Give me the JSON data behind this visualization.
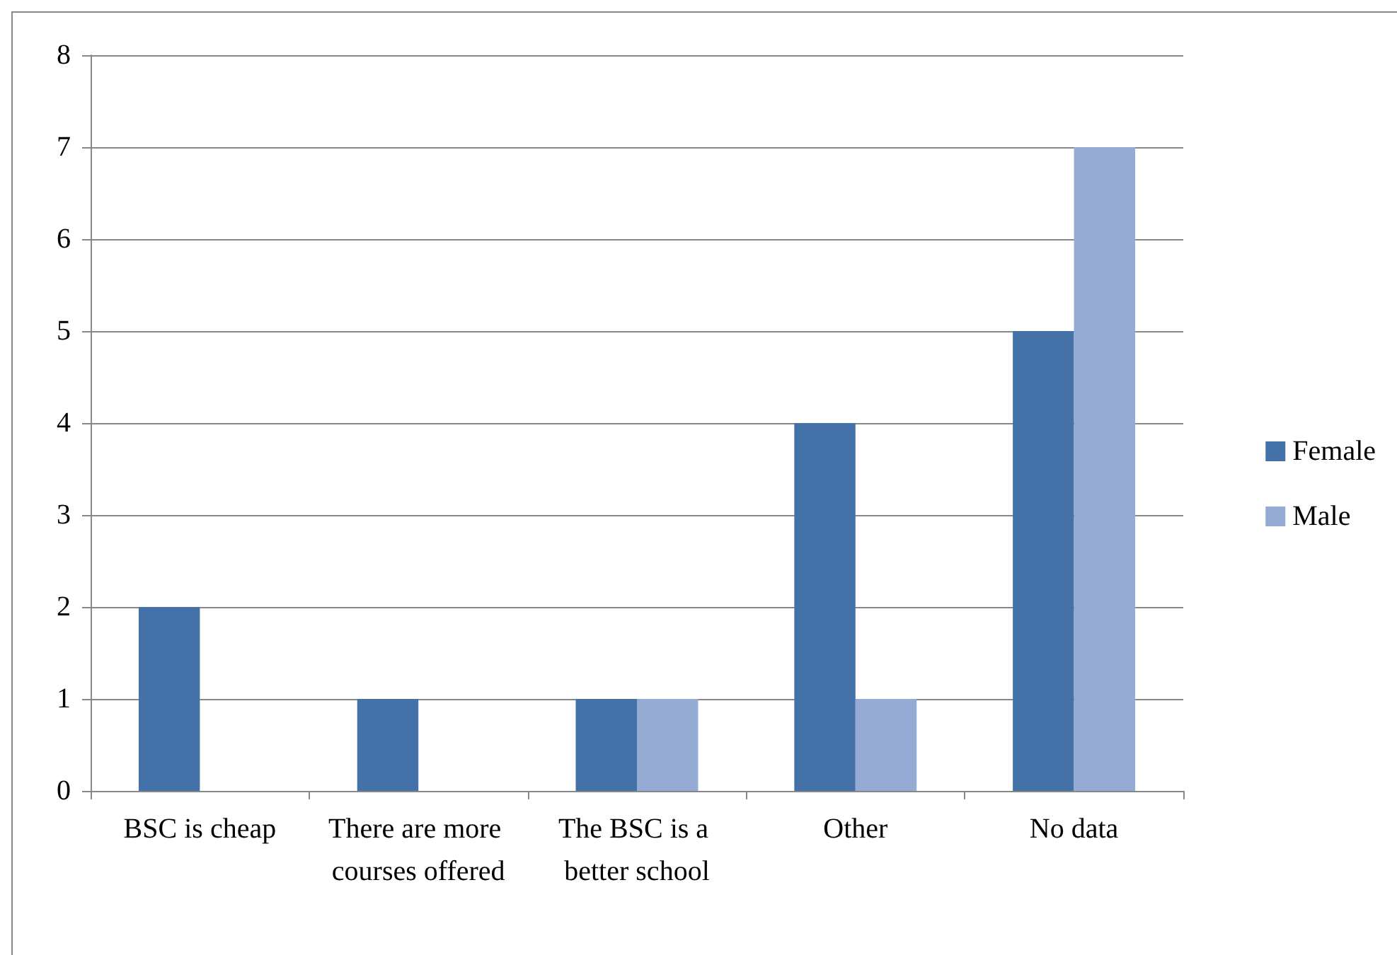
{
  "chart_data": {
    "type": "bar",
    "categories": [
      "BSC is cheap",
      "There are more courses offered",
      "The BSC is a better school",
      "Other",
      "No data"
    ],
    "series": [
      {
        "name": "Female",
        "color": "#4472a8",
        "values": [
          2,
          1,
          1,
          4,
          5
        ]
      },
      {
        "name": "Male",
        "color": "#95abd3",
        "values": [
          0,
          0,
          1,
          1,
          7
        ]
      }
    ],
    "ylim": [
      0,
      8
    ],
    "yticks": [
      0,
      1,
      2,
      3,
      4,
      5,
      6,
      7,
      8
    ],
    "grid": "y",
    "legend": "right"
  }
}
